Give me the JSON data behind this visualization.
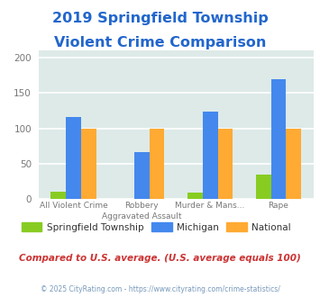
{
  "title_line1": "2019 Springfield Township",
  "title_line2": "Violent Crime Comparison",
  "title_color": "#2266cc",
  "title_fontsize": 11.5,
  "springfield": [
    10,
    0,
    9,
    35
  ],
  "michigan": [
    116,
    66,
    123,
    170
  ],
  "national": [
    100,
    100,
    100,
    100
  ],
  "springfield_color": "#88cc22",
  "michigan_color": "#4488ee",
  "national_color": "#ffaa33",
  "ylim": [
    0,
    210
  ],
  "yticks": [
    0,
    50,
    100,
    150,
    200
  ],
  "fig_background": "#ffffff",
  "plot_bg_color": "#ddeae8",
  "grid_color": "#ffffff",
  "legend_labels": [
    "Springfield Township",
    "Michigan",
    "National"
  ],
  "legend_text_color": "#333333",
  "footer_text": "Compared to U.S. average. (U.S. average equals 100)",
  "footer_color": "#cc3333",
  "copyright_text": "© 2025 CityRating.com - https://www.cityrating.com/crime-statistics/",
  "copyright_color": "#7799bb",
  "bar_width": 0.22,
  "xtick_top": [
    "",
    "Robbery",
    "Murder & Mans...",
    ""
  ],
  "xtick_bottom": [
    "All Violent Crime",
    "Aggravated Assault",
    "",
    "Rape"
  ],
  "ytick_color": "#777777",
  "ytick_fontsize": 7.5,
  "xtick_fontsize": 6.5
}
